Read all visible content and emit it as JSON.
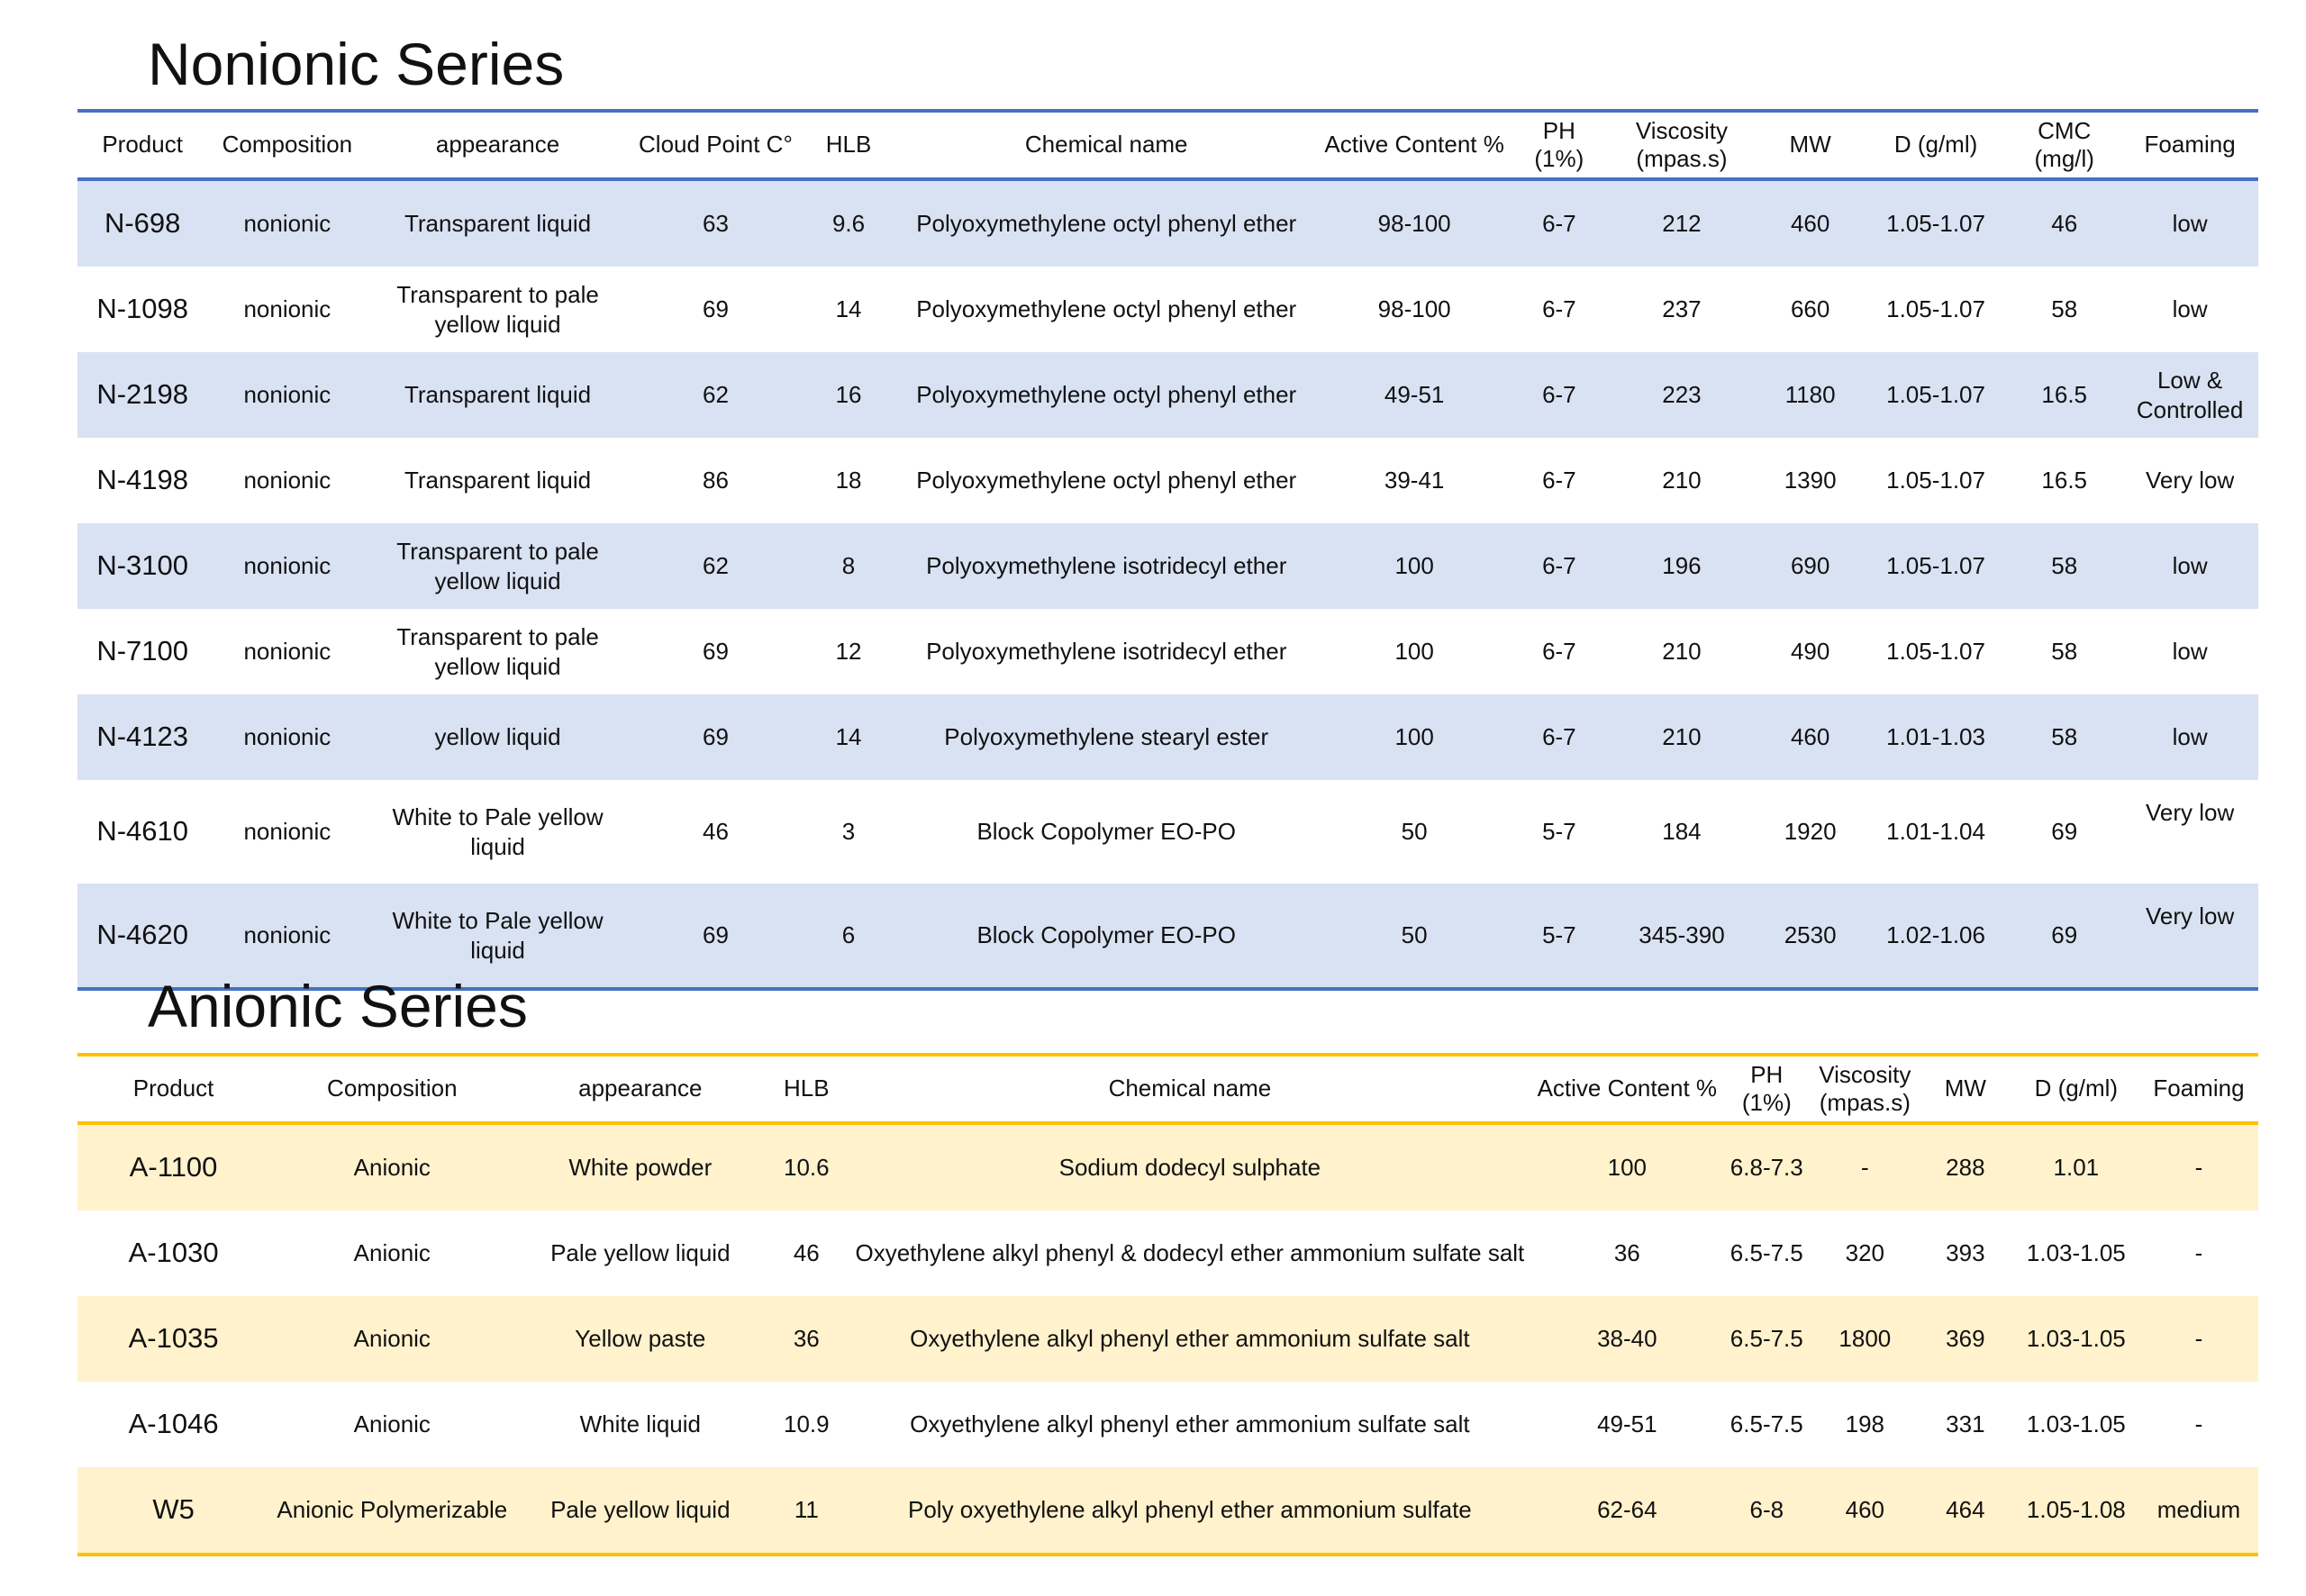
{
  "nonionic": {
    "title": "Nonionic Series",
    "headers": [
      "Product",
      "Composition",
      "appearance",
      "Cloud Point C°",
      "HLB",
      "Chemical name",
      "Active Content %",
      "PH\n(1%)",
      "Viscosity\n(mpas.s)",
      "MW",
      "D (g/ml)",
      "CMC\n(mg/l)",
      "Foaming"
    ],
    "rows": [
      [
        "N-698",
        "nonionic",
        "Transparent liquid",
        "63",
        "9.6",
        "Polyoxymethylene octyl phenyl ether",
        "98-100",
        "6-7",
        "212",
        "460",
        "1.05-1.07",
        "46",
        "low"
      ],
      [
        "N-1098",
        "nonionic",
        "Transparent to pale yellow liquid",
        "69",
        "14",
        "Polyoxymethylene octyl phenyl ether",
        "98-100",
        "6-7",
        "237",
        "660",
        "1.05-1.07",
        "58",
        "low"
      ],
      [
        "N-2198",
        "nonionic",
        "Transparent liquid",
        "62",
        "16",
        "Polyoxymethylene octyl phenyl ether",
        "49-51",
        "6-7",
        "223",
        "1180",
        "1.05-1.07",
        "16.5",
        "Low & Controlled"
      ],
      [
        "N-4198",
        "nonionic",
        "Transparent liquid",
        "86",
        "18",
        "Polyoxymethylene octyl phenyl ether",
        "39-41",
        "6-7",
        "210",
        "1390",
        "1.05-1.07",
        "16.5",
        "Very low"
      ],
      [
        "N-3100",
        "nonionic",
        "Transparent to pale yellow liquid",
        "62",
        "8",
        "Polyoxymethylene isotridecyl ether",
        "100",
        "6-7",
        "196",
        "690",
        "1.05-1.07",
        "58",
        "low"
      ],
      [
        "N-7100",
        "nonionic",
        "Transparent to pale yellow liquid",
        "69",
        "12",
        "Polyoxymethylene isotridecyl ether",
        "100",
        "6-7",
        "210",
        "490",
        "1.05-1.07",
        "58",
        "low"
      ],
      [
        "N-4123",
        "nonionic",
        "yellow liquid",
        "69",
        "14",
        "Polyoxymethylene stearyl ester",
        "100",
        "6-7",
        "210",
        "460",
        "1.01-1.03",
        "58",
        "low"
      ],
      [
        "N-4610",
        "nonionic",
        "White to Pale yellow liquid",
        "46",
        "3",
        "Block Copolymer EO-PO",
        "50",
        "5-7",
        "184",
        "1920",
        "1.01-1.04",
        "69",
        "Very low"
      ],
      [
        "N-4620",
        "nonionic",
        "White to Pale yellow liquid",
        "69",
        "6",
        "Block Copolymer EO-PO",
        "50",
        "5-7",
        "345-390",
        "2530",
        "1.02-1.06",
        "69",
        "Very low"
      ]
    ]
  },
  "anionic": {
    "title": "Anionic Series",
    "headers": [
      "Product",
      "Composition",
      "appearance",
      "HLB",
      "Chemical name",
      "Active Content %",
      "PH\n(1%)",
      "Viscosity\n(mpas.s)",
      "MW",
      "D (g/ml)",
      "Foaming"
    ],
    "rows": [
      [
        "A-1100",
        "Anionic",
        "White powder",
        "10.6",
        "Sodium dodecyl sulphate",
        "100",
        "6.8-7.3",
        "-",
        "288",
        "1.01",
        "-"
      ],
      [
        "A-1030",
        "Anionic",
        "Pale yellow liquid",
        "46",
        "Oxyethylene alkyl phenyl & dodecyl ether ammonium sulfate salt",
        "36",
        "6.5-7.5",
        "320",
        "393",
        "1.03-1.05",
        "-"
      ],
      [
        "A-1035",
        "Anionic",
        "Yellow paste",
        "36",
        "Oxyethylene alkyl phenyl ether ammonium sulfate salt",
        "38-40",
        "6.5-7.5",
        "1800",
        "369",
        "1.03-1.05",
        "-"
      ],
      [
        "A-1046",
        "Anionic",
        "White liquid",
        "10.9",
        "Oxyethylene alkyl phenyl ether ammonium sulfate salt",
        "49-51",
        "6.5-7.5",
        "198",
        "331",
        "1.03-1.05",
        "-"
      ],
      [
        "W5",
        "Anionic Polymerizable",
        "Pale yellow liquid",
        "11",
        "Poly oxyethylene alkyl phenyl ether ammonium sulfate",
        "62-64",
        "6-8",
        "460",
        "464",
        "1.05-1.08",
        "medium"
      ]
    ]
  }
}
